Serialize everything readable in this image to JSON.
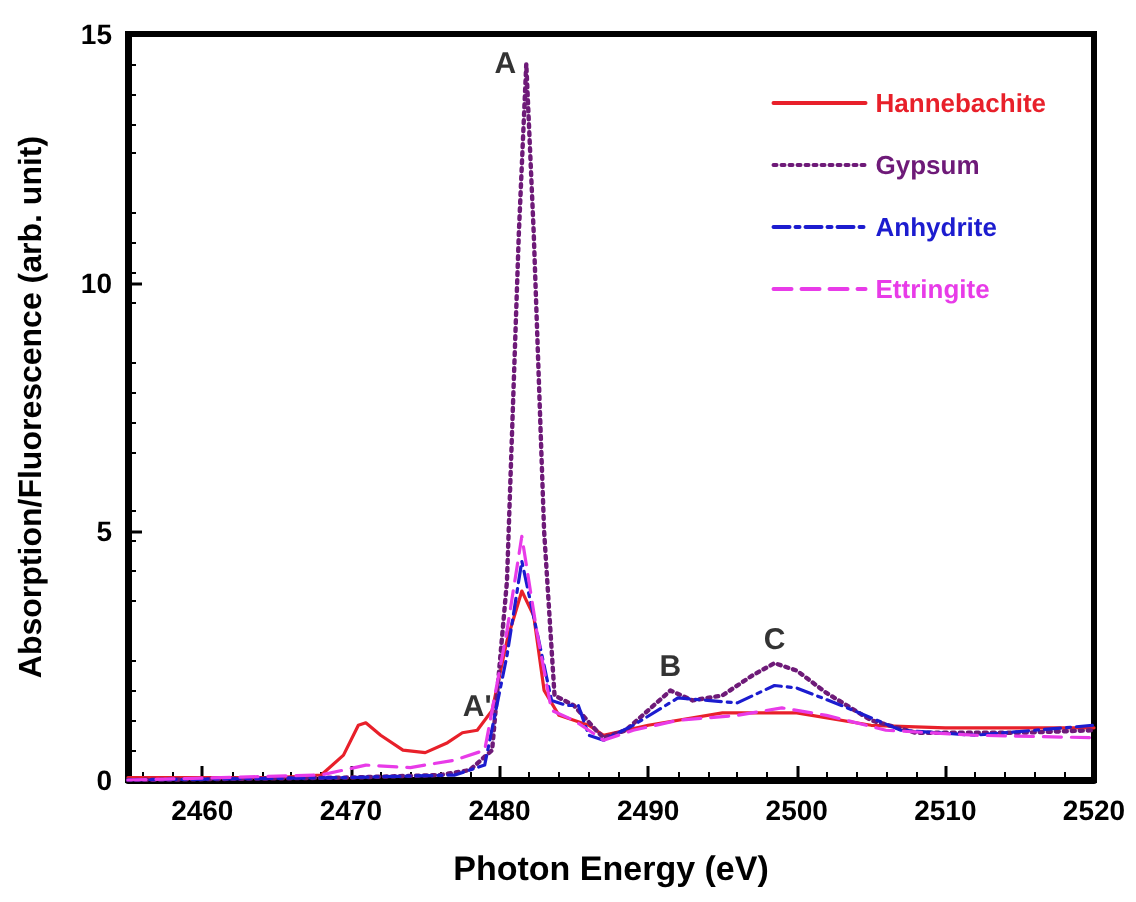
{
  "chart_data": {
    "type": "line",
    "xlabel": "Photon Energy (eV)",
    "ylabel": "Absorption/Fluorescence (arb. unit)",
    "xlim": [
      2455,
      2520
    ],
    "xticks": [
      2460,
      2470,
      2480,
      2490,
      2500,
      2510,
      2520
    ],
    "ylim": [
      0,
      15
    ],
    "yticks": [
      0,
      5,
      10,
      15
    ],
    "grid": false,
    "legend": "top right",
    "marker": "none",
    "annotations": [
      {
        "text": "A",
        "x": 2481.8,
        "y": 14.4
      },
      {
        "text": "A'",
        "x": 2478.5,
        "y": 1.0
      },
      {
        "text": "B",
        "x": 2491.5,
        "y": 1.8
      },
      {
        "text": "C",
        "x": 2498.5,
        "y": 2.35
      }
    ],
    "series": [
      {
        "name": "Hannebachite",
        "color": "#e8202a",
        "line_style": "solid",
        "x": [
          2455,
          2465,
          2468,
          2469.5,
          2470.5,
          2471,
          2472,
          2473.5,
          2475,
          2476.5,
          2477.5,
          2478.5,
          2479.5,
          2480.5,
          2481.5,
          2482.3,
          2483,
          2484,
          2486,
          2487,
          2490,
          2495,
          2500,
          2505,
          2510,
          2520
        ],
        "values": [
          0.05,
          0.05,
          0.1,
          0.5,
          1.1,
          1.15,
          0.9,
          0.6,
          0.55,
          0.75,
          0.95,
          1.0,
          1.4,
          2.8,
          3.8,
          3.3,
          1.8,
          1.3,
          1.1,
          0.9,
          1.1,
          1.35,
          1.35,
          1.1,
          1.05,
          1.05
        ]
      },
      {
        "name": "Gypsum",
        "color": "#6e1a78",
        "line_style": "dotted",
        "x": [
          2455,
          2470,
          2476,
          2478,
          2479.5,
          2480.5,
          2481.3,
          2481.8,
          2482.3,
          2483,
          2483.7,
          2485,
          2486.5,
          2487,
          2488.5,
          2490,
          2491.5,
          2493,
          2495,
          2497,
          2498.5,
          2500,
          2502,
          2505,
          2508,
          2515,
          2520
        ],
        "values": [
          0,
          0.05,
          0.1,
          0.2,
          0.6,
          4,
          11,
          14.4,
          11,
          5,
          1.7,
          1.5,
          1.0,
          0.85,
          1.0,
          1.4,
          1.8,
          1.6,
          1.7,
          2.1,
          2.35,
          2.2,
          1.75,
          1.2,
          0.95,
          0.95,
          1.0
        ]
      },
      {
        "name": "Anhydrite",
        "color": "#1c1ccf",
        "line_style": "dashdot",
        "x": [
          2455,
          2470,
          2477,
          2479,
          2480.5,
          2481.5,
          2482.5,
          2483.5,
          2484.5,
          2485.3,
          2486,
          2487,
          2489,
          2492,
          2494,
          2496,
          2498.5,
          2500,
          2503,
          2507,
          2512,
          2520
        ],
        "values": [
          0,
          0.05,
          0.1,
          0.3,
          2.5,
          4.4,
          3.0,
          1.6,
          1.5,
          1.5,
          0.9,
          0.8,
          1.1,
          1.65,
          1.6,
          1.55,
          1.9,
          1.85,
          1.5,
          1.0,
          0.9,
          1.1
        ]
      },
      {
        "name": "Ettringite",
        "color": "#e83be8",
        "line_style": "dashed",
        "x": [
          2455,
          2468,
          2471,
          2474,
          2477,
          2479,
          2480.5,
          2481.5,
          2482.5,
          2483.5,
          2485,
          2487,
          2489,
          2492,
          2496,
          2499,
          2502,
          2506,
          2512,
          2520
        ],
        "values": [
          0,
          0.1,
          0.3,
          0.25,
          0.4,
          0.6,
          3,
          4.9,
          3,
          1.4,
          1.2,
          0.8,
          1.0,
          1.2,
          1.3,
          1.45,
          1.3,
          1.0,
          0.9,
          0.85
        ]
      }
    ]
  }
}
